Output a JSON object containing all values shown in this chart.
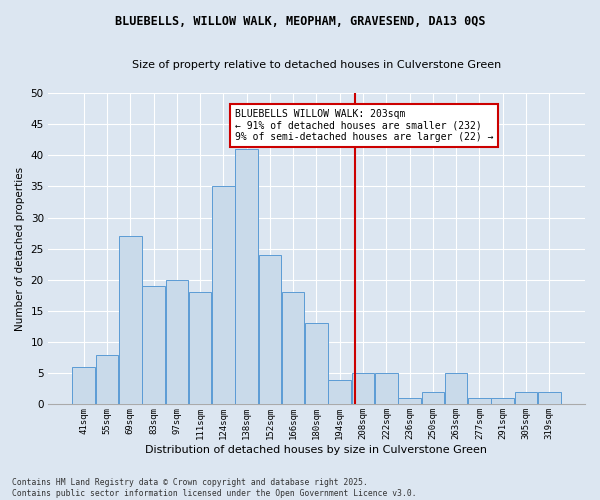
{
  "title1": "BLUEBELLS, WILLOW WALK, MEOPHAM, GRAVESEND, DA13 0QS",
  "title2": "Size of property relative to detached houses in Culverstone Green",
  "xlabel": "Distribution of detached houses by size in Culverstone Green",
  "ylabel": "Number of detached properties",
  "categories": [
    "41sqm",
    "55sqm",
    "69sqm",
    "83sqm",
    "97sqm",
    "111sqm",
    "124sqm",
    "138sqm",
    "152sqm",
    "166sqm",
    "180sqm",
    "194sqm",
    "208sqm",
    "222sqm",
    "236sqm",
    "250sqm",
    "263sqm",
    "277sqm",
    "291sqm",
    "305sqm",
    "319sqm"
  ],
  "values": [
    6,
    8,
    27,
    19,
    20,
    18,
    35,
    41,
    24,
    18,
    13,
    4,
    5,
    5,
    1,
    2,
    5,
    1,
    1,
    2,
    2
  ],
  "bar_color": "#c9daea",
  "bar_edge_color": "#5b9bd5",
  "background_color": "#dce6f1",
  "grid_color": "#ffffff",
  "annotation_text": "BLUEBELLS WILLOW WALK: 203sqm\n← 91% of detached houses are smaller (232)\n9% of semi-detached houses are larger (22) →",
  "annotation_box_edge": "#cc0000",
  "vline_color": "#cc0000",
  "ylim": [
    0,
    50
  ],
  "yticks": [
    0,
    5,
    10,
    15,
    20,
    25,
    30,
    35,
    40,
    45,
    50
  ],
  "footnote": "Contains HM Land Registry data © Crown copyright and database right 2025.\nContains public sector information licensed under the Open Government Licence v3.0.",
  "cat_vals": [
    41,
    55,
    69,
    83,
    97,
    111,
    124,
    138,
    152,
    166,
    180,
    194,
    208,
    222,
    236,
    250,
    263,
    277,
    291,
    305,
    319
  ]
}
